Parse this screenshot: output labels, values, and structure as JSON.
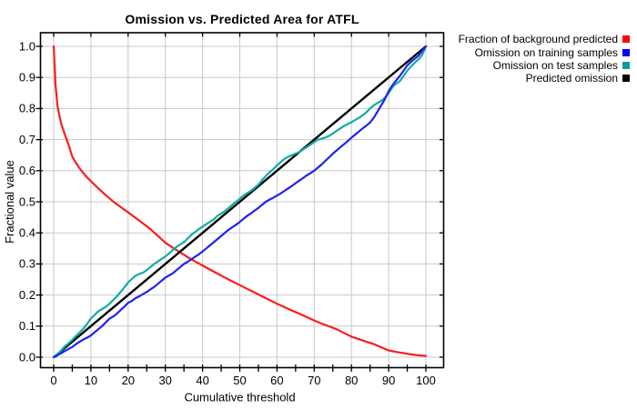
{
  "title": "Omission vs. Predicted Area for ATFL",
  "axes": {
    "x_label": "Cumulative threshold",
    "y_label": "Fractional value",
    "x_ticks": [
      0,
      10,
      20,
      30,
      40,
      50,
      60,
      70,
      80,
      90,
      100
    ],
    "x_minor_step": 5,
    "y_ticks": [
      "0.0",
      "0.1",
      "0.2",
      "0.3",
      "0.4",
      "0.5",
      "0.6",
      "0.7",
      "0.8",
      "0.9",
      "1.0"
    ]
  },
  "colors": {
    "background": "#ffffff",
    "grid": "#c9c9c9",
    "border": "#000000",
    "red": "#fb1d1d",
    "blue": "#2121f0",
    "teal": "#0fada3",
    "black": "#000000"
  },
  "legend": [
    {
      "label": "Fraction of background predicted",
      "color": "#ff0000"
    },
    {
      "label": "Omission on training samples",
      "color": "#0000ff"
    },
    {
      "label": "Omission on test samples",
      "color": "#00a0a0"
    },
    {
      "label": "Predicted omission",
      "color": "#000000"
    }
  ],
  "chart_data": {
    "type": "line",
    "title": "Omission vs. Predicted Area for ATFL",
    "xlabel": "Cumulative threshold",
    "ylabel": "Fractional value",
    "xlim": [
      0,
      100
    ],
    "ylim": [
      0.0,
      1.0
    ],
    "grid": true,
    "legend_position": "top-right-outside",
    "series": [
      {
        "name": "Fraction of background predicted",
        "color": "#fb1d1d",
        "points": [
          [
            0,
            1.0
          ],
          [
            0.3,
            0.93
          ],
          [
            0.5,
            0.875
          ],
          [
            0.8,
            0.835
          ],
          [
            1,
            0.81
          ],
          [
            1.5,
            0.78
          ],
          [
            2,
            0.752
          ],
          [
            3,
            0.716
          ],
          [
            4,
            0.683
          ],
          [
            5,
            0.645
          ],
          [
            6,
            0.625
          ],
          [
            7,
            0.607
          ],
          [
            8,
            0.592
          ],
          [
            9,
            0.578
          ],
          [
            10,
            0.566
          ],
          [
            12,
            0.543
          ],
          [
            14,
            0.521
          ],
          [
            16,
            0.501
          ],
          [
            18,
            0.483
          ],
          [
            20,
            0.466
          ],
          [
            22,
            0.448
          ],
          [
            24,
            0.43
          ],
          [
            26,
            0.412
          ],
          [
            28,
            0.39
          ],
          [
            30,
            0.368
          ],
          [
            32,
            0.352
          ],
          [
            34,
            0.337
          ],
          [
            36,
            0.322
          ],
          [
            38,
            0.308
          ],
          [
            40,
            0.295
          ],
          [
            42,
            0.282
          ],
          [
            44,
            0.269
          ],
          [
            46,
            0.256
          ],
          [
            48,
            0.244
          ],
          [
            50,
            0.232
          ],
          [
            52,
            0.22
          ],
          [
            54,
            0.208
          ],
          [
            56,
            0.196
          ],
          [
            58,
            0.184
          ],
          [
            60,
            0.172
          ],
          [
            62,
            0.161
          ],
          [
            64,
            0.15
          ],
          [
            66,
            0.14
          ],
          [
            68,
            0.129
          ],
          [
            70,
            0.118
          ],
          [
            72,
            0.108
          ],
          [
            74,
            0.099
          ],
          [
            76,
            0.09
          ],
          [
            78,
            0.078
          ],
          [
            80,
            0.066
          ],
          [
            82,
            0.058
          ],
          [
            84,
            0.05
          ],
          [
            86,
            0.042
          ],
          [
            88,
            0.032
          ],
          [
            90,
            0.022
          ],
          [
            92,
            0.017
          ],
          [
            94,
            0.013
          ],
          [
            96,
            0.009
          ],
          [
            98,
            0.006
          ],
          [
            100,
            0.004
          ]
        ]
      },
      {
        "name": "Omission on training samples",
        "color": "#2121f0",
        "points": [
          [
            0,
            0
          ],
          [
            0.5,
            0.002
          ],
          [
            1,
            0.006
          ],
          [
            2,
            0.013
          ],
          [
            3,
            0.02
          ],
          [
            4,
            0.027
          ],
          [
            5,
            0.033
          ],
          [
            6,
            0.042
          ],
          [
            7,
            0.05
          ],
          [
            8,
            0.057
          ],
          [
            9,
            0.063
          ],
          [
            10,
            0.07
          ],
          [
            11,
            0.08
          ],
          [
            12,
            0.09
          ],
          [
            13,
            0.1
          ],
          [
            14,
            0.112
          ],
          [
            15,
            0.124
          ],
          [
            16,
            0.131
          ],
          [
            17,
            0.14
          ],
          [
            18,
            0.152
          ],
          [
            19,
            0.163
          ],
          [
            20,
            0.175
          ],
          [
            21,
            0.181
          ],
          [
            22,
            0.19
          ],
          [
            23,
            0.196
          ],
          [
            24,
            0.203
          ],
          [
            25,
            0.21
          ],
          [
            26,
            0.218
          ],
          [
            27,
            0.226
          ],
          [
            28,
            0.236
          ],
          [
            29,
            0.246
          ],
          [
            30,
            0.256
          ],
          [
            31,
            0.263
          ],
          [
            32,
            0.27
          ],
          [
            33,
            0.28
          ],
          [
            34,
            0.29
          ],
          [
            35,
            0.3
          ],
          [
            36,
            0.307
          ],
          [
            37,
            0.315
          ],
          [
            38,
            0.323
          ],
          [
            39,
            0.331
          ],
          [
            40,
            0.34
          ],
          [
            41,
            0.35
          ],
          [
            42,
            0.36
          ],
          [
            43,
            0.37
          ],
          [
            44,
            0.38
          ],
          [
            45,
            0.39
          ],
          [
            46,
            0.4
          ],
          [
            47,
            0.41
          ],
          [
            48,
            0.418
          ],
          [
            49,
            0.426
          ],
          [
            50,
            0.435
          ],
          [
            51,
            0.445
          ],
          [
            52,
            0.455
          ],
          [
            53,
            0.463
          ],
          [
            54,
            0.472
          ],
          [
            55,
            0.48
          ],
          [
            56,
            0.49
          ],
          [
            57,
            0.5
          ],
          [
            58,
            0.507
          ],
          [
            59,
            0.513
          ],
          [
            60,
            0.52
          ],
          [
            61,
            0.527
          ],
          [
            62,
            0.535
          ],
          [
            63,
            0.543
          ],
          [
            64,
            0.551
          ],
          [
            65,
            0.56
          ],
          [
            66,
            0.568
          ],
          [
            67,
            0.576
          ],
          [
            68,
            0.585
          ],
          [
            69,
            0.592
          ],
          [
            70,
            0.6
          ],
          [
            71,
            0.61
          ],
          [
            72,
            0.62
          ],
          [
            73,
            0.632
          ],
          [
            74,
            0.643
          ],
          [
            75,
            0.655
          ],
          [
            76,
            0.665
          ],
          [
            77,
            0.675
          ],
          [
            78,
            0.685
          ],
          [
            79,
            0.695
          ],
          [
            80,
            0.706
          ],
          [
            81,
            0.716
          ],
          [
            82,
            0.726
          ],
          [
            83,
            0.736
          ],
          [
            84,
            0.745
          ],
          [
            85,
            0.755
          ],
          [
            86,
            0.77
          ],
          [
            87,
            0.79
          ],
          [
            88,
            0.81
          ],
          [
            89,
            0.83
          ],
          [
            90,
            0.856
          ],
          [
            91,
            0.875
          ],
          [
            92,
            0.89
          ],
          [
            93,
            0.905
          ],
          [
            94,
            0.922
          ],
          [
            95,
            0.939
          ],
          [
            96,
            0.95
          ],
          [
            97,
            0.96
          ],
          [
            98,
            0.97
          ],
          [
            99,
            0.985
          ],
          [
            100,
            1.0
          ]
        ]
      },
      {
        "name": "Omission on test samples",
        "color": "#0fada3",
        "points": [
          [
            0,
            0
          ],
          [
            0.5,
            0.004
          ],
          [
            1,
            0.01
          ],
          [
            2,
            0.022
          ],
          [
            3,
            0.035
          ],
          [
            4,
            0.045
          ],
          [
            5,
            0.056
          ],
          [
            6,
            0.068
          ],
          [
            7,
            0.08
          ],
          [
            8,
            0.092
          ],
          [
            9,
            0.107
          ],
          [
            10,
            0.125
          ],
          [
            11,
            0.136
          ],
          [
            12,
            0.148
          ],
          [
            13,
            0.155
          ],
          [
            14,
            0.162
          ],
          [
            15,
            0.172
          ],
          [
            16,
            0.184
          ],
          [
            17,
            0.196
          ],
          [
            18,
            0.21
          ],
          [
            19,
            0.225
          ],
          [
            20,
            0.24
          ],
          [
            21,
            0.252
          ],
          [
            22,
            0.262
          ],
          [
            23,
            0.268
          ],
          [
            24,
            0.272
          ],
          [
            25,
            0.28
          ],
          [
            26,
            0.29
          ],
          [
            27,
            0.3
          ],
          [
            28,
            0.308
          ],
          [
            29,
            0.316
          ],
          [
            30,
            0.324
          ],
          [
            31,
            0.334
          ],
          [
            32,
            0.345
          ],
          [
            33,
            0.355
          ],
          [
            34,
            0.363
          ],
          [
            35,
            0.37
          ],
          [
            36,
            0.382
          ],
          [
            37,
            0.394
          ],
          [
            38,
            0.403
          ],
          [
            39,
            0.412
          ],
          [
            40,
            0.42
          ],
          [
            41,
            0.428
          ],
          [
            42,
            0.436
          ],
          [
            43,
            0.443
          ],
          [
            44,
            0.455
          ],
          [
            45,
            0.462
          ],
          [
            46,
            0.47
          ],
          [
            47,
            0.48
          ],
          [
            48,
            0.49
          ],
          [
            49,
            0.5
          ],
          [
            50,
            0.51
          ],
          [
            51,
            0.52
          ],
          [
            52,
            0.528
          ],
          [
            53,
            0.535
          ],
          [
            54,
            0.545
          ],
          [
            55,
            0.555
          ],
          [
            56,
            0.57
          ],
          [
            57,
            0.583
          ],
          [
            58,
            0.595
          ],
          [
            59,
            0.605
          ],
          [
            60,
            0.617
          ],
          [
            61,
            0.628
          ],
          [
            62,
            0.638
          ],
          [
            63,
            0.645
          ],
          [
            64,
            0.65
          ],
          [
            65,
            0.655
          ],
          [
            66,
            0.66
          ],
          [
            67,
            0.668
          ],
          [
            68,
            0.676
          ],
          [
            69,
            0.684
          ],
          [
            70,
            0.692
          ],
          [
            71,
            0.7
          ],
          [
            72,
            0.703
          ],
          [
            73,
            0.707
          ],
          [
            74,
            0.712
          ],
          [
            75,
            0.72
          ],
          [
            76,
            0.728
          ],
          [
            77,
            0.736
          ],
          [
            78,
            0.744
          ],
          [
            79,
            0.75
          ],
          [
            80,
            0.756
          ],
          [
            81,
            0.763
          ],
          [
            82,
            0.77
          ],
          [
            83,
            0.778
          ],
          [
            84,
            0.788
          ],
          [
            85,
            0.8
          ],
          [
            86,
            0.81
          ],
          [
            87,
            0.818
          ],
          [
            88,
            0.825
          ],
          [
            89,
            0.835
          ],
          [
            90,
            0.85
          ],
          [
            91,
            0.868
          ],
          [
            92,
            0.88
          ],
          [
            93,
            0.888
          ],
          [
            94,
            0.905
          ],
          [
            95,
            0.922
          ],
          [
            96,
            0.935
          ],
          [
            97,
            0.947
          ],
          [
            98,
            0.958
          ],
          [
            99,
            0.972
          ],
          [
            100,
            1.0
          ]
        ]
      },
      {
        "name": "Predicted omission",
        "color": "#000000",
        "points": [
          [
            0,
            0
          ],
          [
            100,
            1.0
          ]
        ]
      }
    ]
  }
}
